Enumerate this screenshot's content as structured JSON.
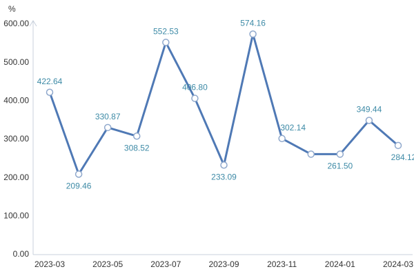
{
  "chart_data": {
    "type": "line",
    "y_label": "%",
    "categories": [
      "2023-03",
      null,
      "2023-05",
      null,
      "2023-07",
      null,
      "2023-09",
      null,
      "2023-11",
      null,
      "2024-01",
      null,
      "2024-03"
    ],
    "values": [
      422.64,
      209.46,
      330.87,
      308.52,
      552.53,
      406.8,
      233.09,
      574.16,
      302.14,
      261.5,
      261.5,
      349.44,
      284.12
    ],
    "value_labels": [
      "422.64",
      "209.46",
      "330.87",
      "308.52",
      "552.53",
      "406.80",
      "233.09",
      "574.16",
      "302.14",
      null,
      "261.50",
      "349.44",
      "284.12"
    ],
    "color": "#4f79b5",
    "label_color": "#3d8aa6",
    "ylim": [
      0,
      600
    ],
    "yticks": [
      {
        "value": 0,
        "label": "0.00"
      },
      {
        "value": 100,
        "label": "100.00"
      },
      {
        "value": 200,
        "label": "200.00"
      },
      {
        "value": 300,
        "label": "300.00"
      },
      {
        "value": 400,
        "label": "400.00"
      },
      {
        "value": 500,
        "label": "500.00"
      },
      {
        "value": 600,
        "label": "600.00"
      }
    ]
  }
}
